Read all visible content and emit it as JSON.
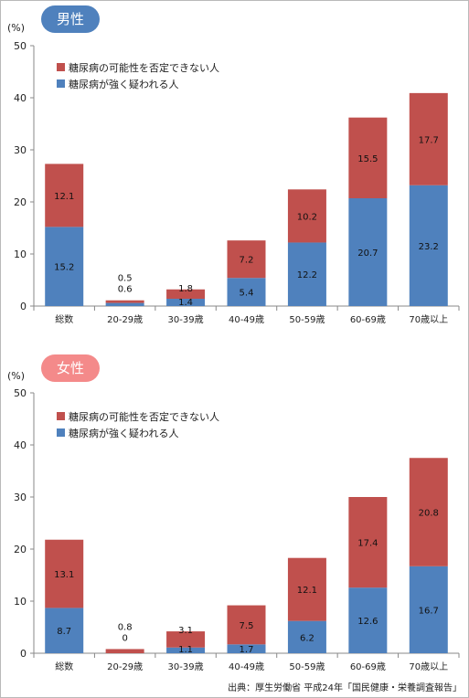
{
  "colors": {
    "possible": "#c0504d",
    "strong": "#4f81bd",
    "male_badge": "#4f81bd",
    "female_badge": "#f48a8a"
  },
  "source": "出典：厚生労働省 平成24年「国民健康・栄養調査報告」",
  "chart_data": [
    {
      "type": "bar",
      "stacked": true,
      "title": "男性",
      "unit_label": "(%)",
      "ylim": [
        0,
        50
      ],
      "yticks": [
        0,
        10,
        20,
        30,
        40,
        50
      ],
      "legend_placement": "top-left",
      "categories": [
        "総数",
        "20-29歳",
        "30-39歳",
        "40-49歳",
        "50-59歳",
        "60-69歳",
        "70歳以上"
      ],
      "series": [
        {
          "name": "糖尿病が強く疑われる人",
          "values": [
            15.2,
            0.6,
            1.4,
            5.4,
            12.2,
            20.7,
            23.2
          ]
        },
        {
          "name": "糖尿病の可能性を否定できない人",
          "values": [
            12.1,
            0.5,
            1.8,
            7.2,
            10.2,
            15.5,
            17.7
          ]
        }
      ]
    },
    {
      "type": "bar",
      "stacked": true,
      "title": "女性",
      "unit_label": "(%)",
      "ylim": [
        0,
        50
      ],
      "yticks": [
        0,
        10,
        20,
        30,
        40,
        50
      ],
      "legend_placement": "top-left",
      "categories": [
        "総数",
        "20-29歳",
        "30-39歳",
        "40-49歳",
        "50-59歳",
        "60-69歳",
        "70歳以上"
      ],
      "series": [
        {
          "name": "糖尿病が強く疑われる人",
          "values": [
            8.7,
            0,
            1.1,
            1.7,
            6.2,
            12.6,
            16.7
          ]
        },
        {
          "name": "糖尿病の可能性を否定できない人",
          "values": [
            13.1,
            0.8,
            3.1,
            7.5,
            12.1,
            17.4,
            20.8
          ]
        }
      ]
    }
  ]
}
